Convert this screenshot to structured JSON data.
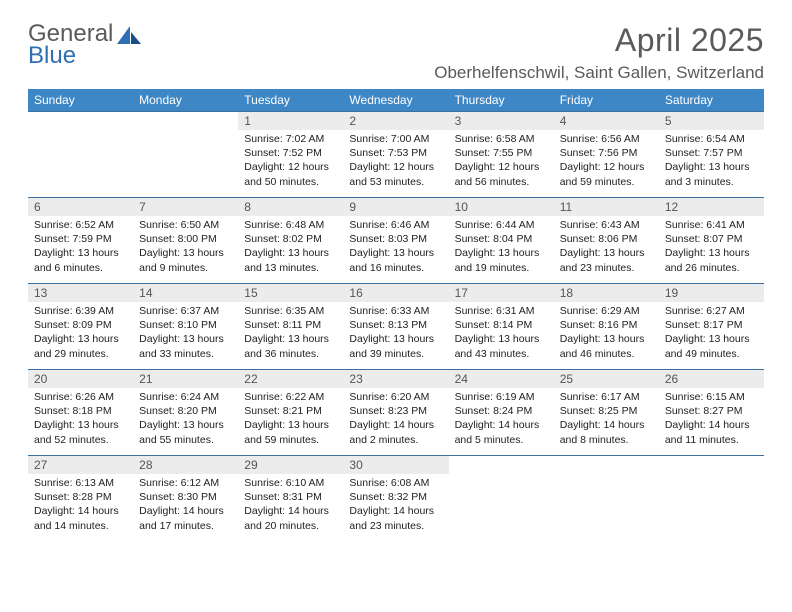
{
  "logo": {
    "word1": "General",
    "word2": "Blue"
  },
  "title": "April 2025",
  "location": "Oberhelfenschwil, Saint Gallen, Switzerland",
  "colors": {
    "header_bg": "#3d87c7",
    "header_text": "#ffffff",
    "row_border": "#3d6f9e",
    "daynum_bg": "#ececec",
    "logo_gray": "#5a5a5a",
    "logo_blue": "#2f6fb3"
  },
  "day_headers": [
    "Sunday",
    "Monday",
    "Tuesday",
    "Wednesday",
    "Thursday",
    "Friday",
    "Saturday"
  ],
  "weeks": [
    [
      {
        "empty": true
      },
      {
        "empty": true
      },
      {
        "n": "1",
        "sunrise": "Sunrise: 7:02 AM",
        "sunset": "Sunset: 7:52 PM",
        "daylight": "Daylight: 12 hours and 50 minutes."
      },
      {
        "n": "2",
        "sunrise": "Sunrise: 7:00 AM",
        "sunset": "Sunset: 7:53 PM",
        "daylight": "Daylight: 12 hours and 53 minutes."
      },
      {
        "n": "3",
        "sunrise": "Sunrise: 6:58 AM",
        "sunset": "Sunset: 7:55 PM",
        "daylight": "Daylight: 12 hours and 56 minutes."
      },
      {
        "n": "4",
        "sunrise": "Sunrise: 6:56 AM",
        "sunset": "Sunset: 7:56 PM",
        "daylight": "Daylight: 12 hours and 59 minutes."
      },
      {
        "n": "5",
        "sunrise": "Sunrise: 6:54 AM",
        "sunset": "Sunset: 7:57 PM",
        "daylight": "Daylight: 13 hours and 3 minutes."
      }
    ],
    [
      {
        "n": "6",
        "sunrise": "Sunrise: 6:52 AM",
        "sunset": "Sunset: 7:59 PM",
        "daylight": "Daylight: 13 hours and 6 minutes."
      },
      {
        "n": "7",
        "sunrise": "Sunrise: 6:50 AM",
        "sunset": "Sunset: 8:00 PM",
        "daylight": "Daylight: 13 hours and 9 minutes."
      },
      {
        "n": "8",
        "sunrise": "Sunrise: 6:48 AM",
        "sunset": "Sunset: 8:02 PM",
        "daylight": "Daylight: 13 hours and 13 minutes."
      },
      {
        "n": "9",
        "sunrise": "Sunrise: 6:46 AM",
        "sunset": "Sunset: 8:03 PM",
        "daylight": "Daylight: 13 hours and 16 minutes."
      },
      {
        "n": "10",
        "sunrise": "Sunrise: 6:44 AM",
        "sunset": "Sunset: 8:04 PM",
        "daylight": "Daylight: 13 hours and 19 minutes."
      },
      {
        "n": "11",
        "sunrise": "Sunrise: 6:43 AM",
        "sunset": "Sunset: 8:06 PM",
        "daylight": "Daylight: 13 hours and 23 minutes."
      },
      {
        "n": "12",
        "sunrise": "Sunrise: 6:41 AM",
        "sunset": "Sunset: 8:07 PM",
        "daylight": "Daylight: 13 hours and 26 minutes."
      }
    ],
    [
      {
        "n": "13",
        "sunrise": "Sunrise: 6:39 AM",
        "sunset": "Sunset: 8:09 PM",
        "daylight": "Daylight: 13 hours and 29 minutes."
      },
      {
        "n": "14",
        "sunrise": "Sunrise: 6:37 AM",
        "sunset": "Sunset: 8:10 PM",
        "daylight": "Daylight: 13 hours and 33 minutes."
      },
      {
        "n": "15",
        "sunrise": "Sunrise: 6:35 AM",
        "sunset": "Sunset: 8:11 PM",
        "daylight": "Daylight: 13 hours and 36 minutes."
      },
      {
        "n": "16",
        "sunrise": "Sunrise: 6:33 AM",
        "sunset": "Sunset: 8:13 PM",
        "daylight": "Daylight: 13 hours and 39 minutes."
      },
      {
        "n": "17",
        "sunrise": "Sunrise: 6:31 AM",
        "sunset": "Sunset: 8:14 PM",
        "daylight": "Daylight: 13 hours and 43 minutes."
      },
      {
        "n": "18",
        "sunrise": "Sunrise: 6:29 AM",
        "sunset": "Sunset: 8:16 PM",
        "daylight": "Daylight: 13 hours and 46 minutes."
      },
      {
        "n": "19",
        "sunrise": "Sunrise: 6:27 AM",
        "sunset": "Sunset: 8:17 PM",
        "daylight": "Daylight: 13 hours and 49 minutes."
      }
    ],
    [
      {
        "n": "20",
        "sunrise": "Sunrise: 6:26 AM",
        "sunset": "Sunset: 8:18 PM",
        "daylight": "Daylight: 13 hours and 52 minutes."
      },
      {
        "n": "21",
        "sunrise": "Sunrise: 6:24 AM",
        "sunset": "Sunset: 8:20 PM",
        "daylight": "Daylight: 13 hours and 55 minutes."
      },
      {
        "n": "22",
        "sunrise": "Sunrise: 6:22 AM",
        "sunset": "Sunset: 8:21 PM",
        "daylight": "Daylight: 13 hours and 59 minutes."
      },
      {
        "n": "23",
        "sunrise": "Sunrise: 6:20 AM",
        "sunset": "Sunset: 8:23 PM",
        "daylight": "Daylight: 14 hours and 2 minutes."
      },
      {
        "n": "24",
        "sunrise": "Sunrise: 6:19 AM",
        "sunset": "Sunset: 8:24 PM",
        "daylight": "Daylight: 14 hours and 5 minutes."
      },
      {
        "n": "25",
        "sunrise": "Sunrise: 6:17 AM",
        "sunset": "Sunset: 8:25 PM",
        "daylight": "Daylight: 14 hours and 8 minutes."
      },
      {
        "n": "26",
        "sunrise": "Sunrise: 6:15 AM",
        "sunset": "Sunset: 8:27 PM",
        "daylight": "Daylight: 14 hours and 11 minutes."
      }
    ],
    [
      {
        "n": "27",
        "sunrise": "Sunrise: 6:13 AM",
        "sunset": "Sunset: 8:28 PM",
        "daylight": "Daylight: 14 hours and 14 minutes."
      },
      {
        "n": "28",
        "sunrise": "Sunrise: 6:12 AM",
        "sunset": "Sunset: 8:30 PM",
        "daylight": "Daylight: 14 hours and 17 minutes."
      },
      {
        "n": "29",
        "sunrise": "Sunrise: 6:10 AM",
        "sunset": "Sunset: 8:31 PM",
        "daylight": "Daylight: 14 hours and 20 minutes."
      },
      {
        "n": "30",
        "sunrise": "Sunrise: 6:08 AM",
        "sunset": "Sunset: 8:32 PM",
        "daylight": "Daylight: 14 hours and 23 minutes."
      },
      {
        "empty": true
      },
      {
        "empty": true
      },
      {
        "empty": true
      }
    ]
  ]
}
